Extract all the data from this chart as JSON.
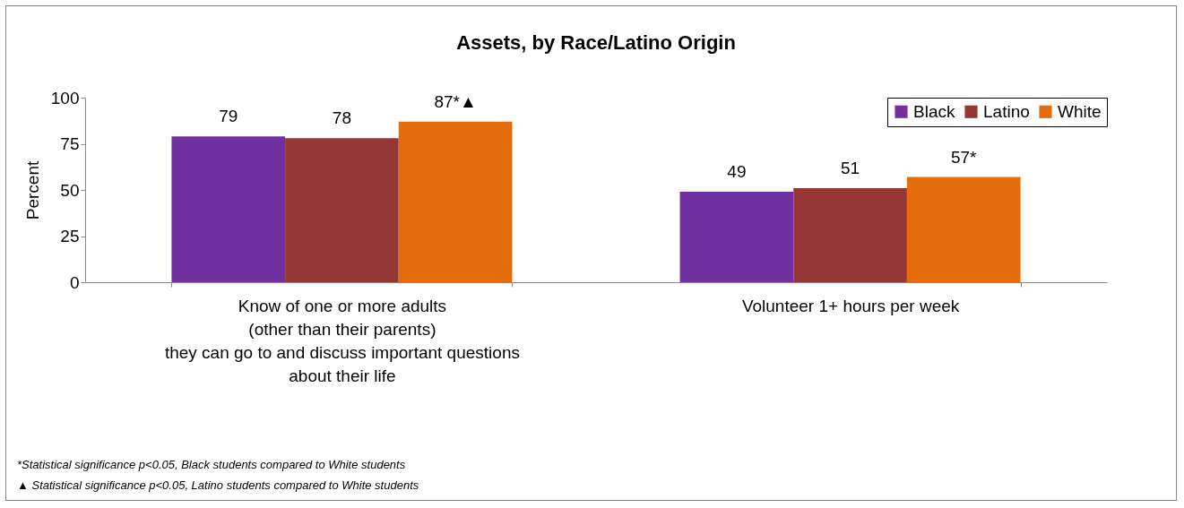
{
  "chart_data": {
    "type": "bar",
    "title": "Assets, by Race/Latino Origin",
    "ylabel": "Percent",
    "categories": [
      "Know of one or more adults\n(other than their parents)\nthey can go to and discuss important questions\nabout their life",
      "Volunteer 1+ hours per week"
    ],
    "series": [
      {
        "name": "Black",
        "color": "#7030a0",
        "values": [
          79,
          49
        ],
        "value_labels": [
          "79",
          "49"
        ]
      },
      {
        "name": "Latino",
        "color": "#953735",
        "values": [
          78,
          51
        ],
        "value_labels": [
          "78",
          "51"
        ]
      },
      {
        "name": "White",
        "color": "#e46c0a",
        "values": [
          87,
          57
        ],
        "value_labels": [
          "87*▲",
          "57*"
        ]
      }
    ],
    "ylim": [
      0,
      100
    ],
    "yticks": [
      0,
      25,
      50,
      75,
      100
    ],
    "grid": false,
    "legend": "top right",
    "annotations": [
      "*Statistical significance p<0.05, Black students compared to White students",
      "▲ Statistical significance p<0.05, Latino students compared to White students"
    ]
  }
}
